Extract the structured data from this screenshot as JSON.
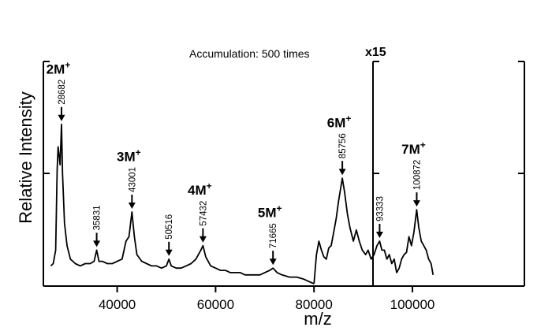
{
  "chart_data": {
    "type": "line",
    "title": "",
    "annotation": "Accumulation: 500 times",
    "xlabel": "m/z",
    "ylabel": "Relative Intensity",
    "xlim": [
      25000,
      105000
    ],
    "ylim": [
      0,
      1
    ],
    "x_ticks": [
      40000,
      60000,
      80000,
      100000
    ],
    "x_tick_labels": [
      "40000",
      "60000",
      "80000",
      "100000"
    ],
    "scale_break_x": 80000,
    "scale_factor_label": "x15",
    "grid": false,
    "series": [
      {
        "values": [
          [
            26500,
            0.09
          ],
          [
            27000,
            0.1
          ],
          [
            27500,
            0.16
          ],
          [
            27800,
            0.52
          ],
          [
            28000,
            0.62
          ],
          [
            28200,
            0.58
          ],
          [
            28400,
            0.54
          ],
          [
            28682,
            0.72
          ],
          [
            28900,
            0.5
          ],
          [
            29300,
            0.28
          ],
          [
            29800,
            0.18
          ],
          [
            30500,
            0.12
          ],
          [
            31500,
            0.1
          ],
          [
            32500,
            0.09
          ],
          [
            33500,
            0.1
          ],
          [
            34500,
            0.1
          ],
          [
            35300,
            0.11
          ],
          [
            35831,
            0.16
          ],
          [
            36300,
            0.11
          ],
          [
            37000,
            0.11
          ],
          [
            38000,
            0.1
          ],
          [
            39000,
            0.1
          ],
          [
            40000,
            0.11
          ],
          [
            41000,
            0.12
          ],
          [
            41800,
            0.2
          ],
          [
            42400,
            0.22
          ],
          [
            43001,
            0.33
          ],
          [
            43500,
            0.22
          ],
          [
            44000,
            0.14
          ],
          [
            45000,
            0.11
          ],
          [
            46000,
            0.1
          ],
          [
            47000,
            0.09
          ],
          [
            48000,
            0.09
          ],
          [
            49000,
            0.08
          ],
          [
            50000,
            0.09
          ],
          [
            50516,
            0.12
          ],
          [
            51000,
            0.09
          ],
          [
            52000,
            0.08
          ],
          [
            53000,
            0.08
          ],
          [
            54000,
            0.09
          ],
          [
            55000,
            0.1
          ],
          [
            56000,
            0.12
          ],
          [
            57000,
            0.16
          ],
          [
            57432,
            0.18
          ],
          [
            58000,
            0.13
          ],
          [
            59000,
            0.09
          ],
          [
            60000,
            0.08
          ],
          [
            61000,
            0.07
          ],
          [
            62000,
            0.07
          ],
          [
            63000,
            0.06
          ],
          [
            64000,
            0.06
          ],
          [
            65000,
            0.06
          ],
          [
            66000,
            0.05
          ],
          [
            67000,
            0.05
          ],
          [
            68000,
            0.05
          ],
          [
            69000,
            0.05
          ],
          [
            70000,
            0.06
          ],
          [
            71000,
            0.07
          ],
          [
            71665,
            0.08
          ],
          [
            72500,
            0.06
          ],
          [
            73500,
            0.05
          ],
          [
            75000,
            0.04
          ],
          [
            76500,
            0.04
          ],
          [
            78000,
            0.03
          ],
          [
            79000,
            0.02
          ],
          [
            80000,
            0.01
          ]
        ]
      },
      {
        "values": [
          [
            80000,
            0.01
          ],
          [
            80500,
            0.14
          ],
          [
            81000,
            0.2
          ],
          [
            81500,
            0.16
          ],
          [
            82000,
            0.13
          ],
          [
            82500,
            0.12
          ],
          [
            83000,
            0.17
          ],
          [
            83500,
            0.18
          ],
          [
            84000,
            0.24
          ],
          [
            84500,
            0.3
          ],
          [
            85000,
            0.38
          ],
          [
            85756,
            0.48
          ],
          [
            86200,
            0.42
          ],
          [
            86800,
            0.32
          ],
          [
            87300,
            0.26
          ],
          [
            88000,
            0.2
          ],
          [
            88600,
            0.25
          ],
          [
            89200,
            0.2
          ],
          [
            89800,
            0.16
          ],
          [
            90500,
            0.14
          ],
          [
            91000,
            0.16
          ],
          [
            91600,
            0.12
          ],
          [
            92200,
            0.14
          ],
          [
            92800,
            0.18
          ],
          [
            93333,
            0.2
          ],
          [
            93800,
            0.16
          ],
          [
            94300,
            0.16
          ],
          [
            94800,
            0.12
          ],
          [
            95300,
            0.14
          ],
          [
            95800,
            0.1
          ],
          [
            96300,
            0.12
          ],
          [
            96800,
            0.06
          ],
          [
            97300,
            0.08
          ],
          [
            97800,
            0.12
          ],
          [
            98300,
            0.14
          ],
          [
            98800,
            0.15
          ],
          [
            99300,
            0.22
          ],
          [
            99800,
            0.18
          ],
          [
            100300,
            0.24
          ],
          [
            100872,
            0.34
          ],
          [
            101300,
            0.26
          ],
          [
            101800,
            0.2
          ],
          [
            102300,
            0.18
          ],
          [
            102800,
            0.16
          ],
          [
            103300,
            0.12
          ],
          [
            103800,
            0.1
          ],
          [
            104200,
            0.05
          ]
        ]
      }
    ],
    "peaks": [
      {
        "ion": "2M",
        "charge": "+",
        "mz": 28682,
        "mz_label": "28682",
        "intensity": 0.72
      },
      {
        "ion": "",
        "charge": "",
        "mz": 35831,
        "mz_label": "35831",
        "intensity": 0.16
      },
      {
        "ion": "3M",
        "charge": "+",
        "mz": 43001,
        "mz_label": "43001",
        "intensity": 0.33
      },
      {
        "ion": "",
        "charge": "",
        "mz": 50516,
        "mz_label": "50516",
        "intensity": 0.12
      },
      {
        "ion": "4M",
        "charge": "+",
        "mz": 57432,
        "mz_label": "57432",
        "intensity": 0.18
      },
      {
        "ion": "5M",
        "charge": "+",
        "mz": 71665,
        "mz_label": "71665",
        "intensity": 0.08
      },
      {
        "ion": "6M",
        "charge": "+",
        "mz": 85756,
        "mz_label": "85756",
        "intensity": 0.48
      },
      {
        "ion": "",
        "charge": "",
        "mz": 93333,
        "mz_label": "93333",
        "intensity": 0.2
      },
      {
        "ion": "7M",
        "charge": "+",
        "mz": 100872,
        "mz_label": "100872",
        "intensity": 0.34
      }
    ]
  }
}
